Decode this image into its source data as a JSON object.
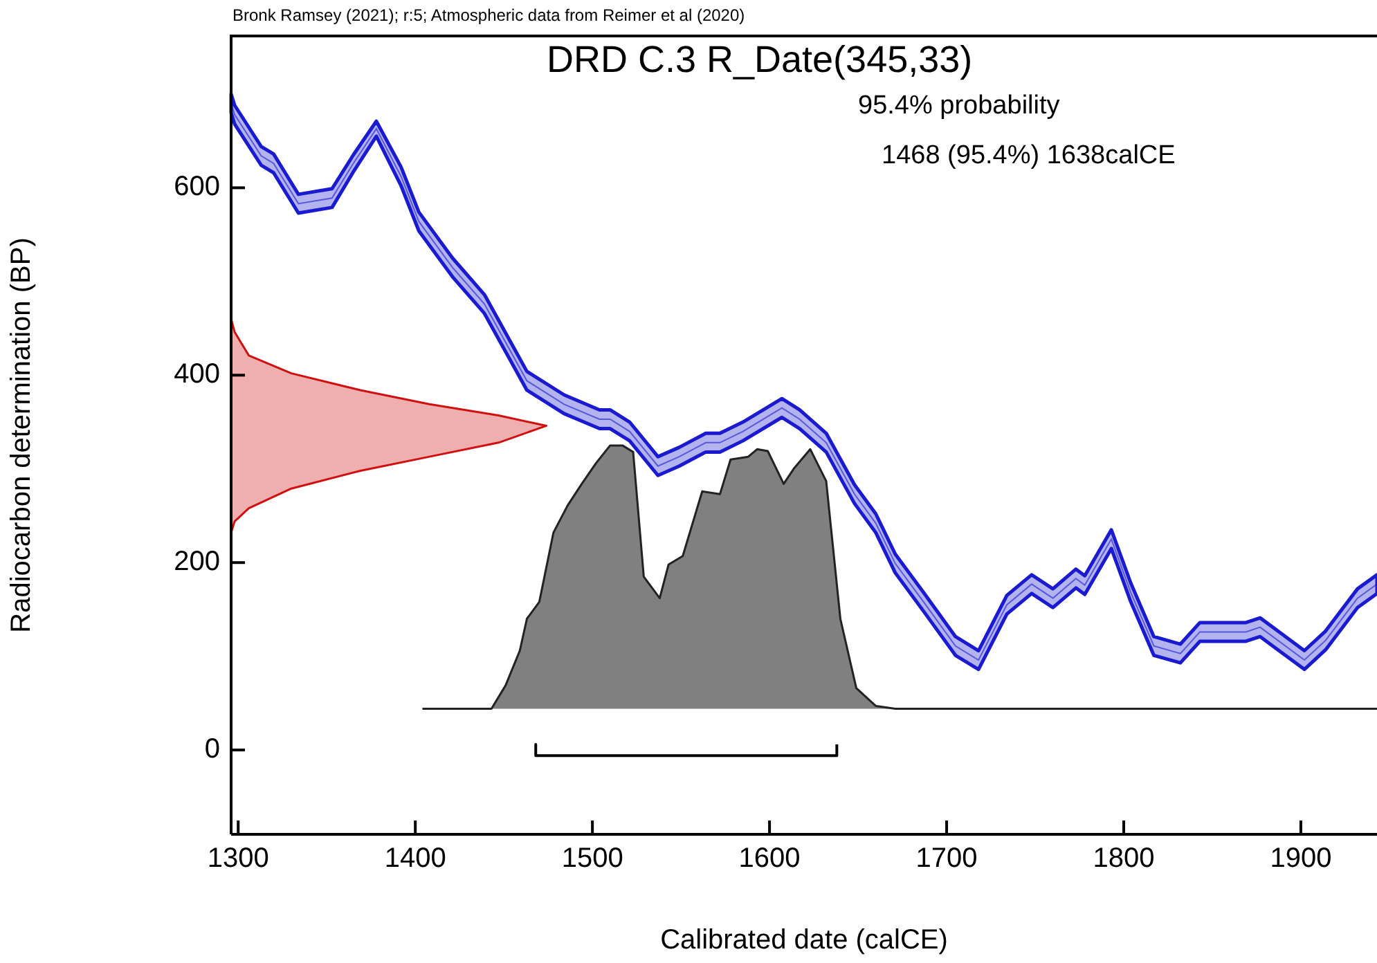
{
  "chart_data": {
    "type": "line",
    "title": "DRD C.3 R_Date(345,33)",
    "xlabel": "Calibrated date (calCE)",
    "ylabel": "Radiocarbon determination (BP)",
    "annotations": [
      "Bronk Ramsey (2021); r:5; Atmospheric data from Reimer et al (2020)",
      "95.4% probability",
      "1468 (95.4%) 1638calCE"
    ],
    "xlim": [
      1296,
      1943
    ],
    "ylim": [
      -90,
      762
    ],
    "xticks": [
      1300,
      1400,
      1500,
      1600,
      1700,
      1800,
      1900
    ],
    "yticks": [
      0,
      200,
      400,
      600
    ],
    "grid": false,
    "legend": false,
    "marker": "none",
    "series": [
      {
        "color": "#1a1ad0",
        "x": [
          1296,
          1298,
          1313,
          1320,
          1334,
          1353,
          1365,
          1378,
          1392,
          1402,
          1421,
          1439,
          1463,
          1484,
          1504,
          1510,
          1521,
          1537,
          1549,
          1564,
          1572,
          1585,
          1607,
          1617,
          1632,
          1648,
          1660,
          1671,
          1687,
          1705,
          1718,
          1734,
          1748,
          1760,
          1773,
          1778,
          1793,
          1804,
          1817,
          1832,
          1843,
          1869,
          1877,
          1887,
          1902,
          1914,
          1932,
          1943
        ],
        "values": [
          690,
          678,
          634,
          626,
          583,
          589,
          626,
          663,
          612,
          564,
          515,
          476,
          394,
          369,
          353,
          353,
          340,
          303,
          313,
          328,
          328,
          340,
          365,
          353,
          328,
          273,
          242,
          199,
          158,
          111,
          96,
          155,
          177,
          162,
          183,
          176,
          225,
          168,
          111,
          103,
          126,
          126,
          131,
          117,
          96,
          117,
          162,
          177
        ],
        "lower": [
          680,
          668,
          624,
          616,
          573,
          579,
          617,
          655,
          602,
          554,
          505,
          466,
          384,
          359,
          343,
          343,
          330,
          293,
          303,
          318,
          318,
          330,
          355,
          343,
          318,
          263,
          232,
          189,
          148,
          101,
          86,
          145,
          167,
          152,
          173,
          166,
          215,
          158,
          101,
          93,
          116,
          116,
          121,
          107,
          86,
          107,
          152,
          167
        ],
        "upper": [
          700,
          688,
          644,
          636,
          593,
          599,
          635,
          671,
          622,
          574,
          525,
          486,
          404,
          379,
          363,
          363,
          350,
          313,
          323,
          338,
          338,
          350,
          375,
          363,
          338,
          283,
          252,
          209,
          168,
          121,
          106,
          165,
          187,
          172,
          193,
          186,
          235,
          178,
          121,
          113,
          136,
          136,
          141,
          127,
          106,
          127,
          172,
          187
        ]
      },
      {
        "type": "area",
        "color": "#d01010",
        "x": [
          1296,
          1298,
          1306,
          1330,
          1369,
          1408,
          1447,
          1474,
          1447,
          1408,
          1369,
          1330,
          1306,
          1298,
          1296
        ],
        "values": [
          460,
          446,
          421,
          402,
          384,
          369,
          357,
          346,
          328,
          313,
          298,
          279,
          258,
          244,
          232
        ]
      },
      {
        "type": "area",
        "color": "#808080",
        "x": [
          1404,
          1443,
          1451,
          1459,
          1463,
          1470,
          1478,
          1486,
          1494,
          1502,
          1510,
          1517,
          1523,
          1529,
          1538,
          1543,
          1551,
          1562,
          1572,
          1578,
          1588,
          1593,
          1599,
          1608,
          1614,
          1623,
          1632,
          1640,
          1649,
          1660,
          1671,
          1943
        ],
        "values": [
          44,
          44,
          69,
          106,
          140,
          158,
          232,
          261,
          284,
          306,
          325,
          325,
          318,
          185,
          162,
          198,
          207,
          276,
          273,
          310,
          313,
          321,
          319,
          284,
          301,
          321,
          287,
          140,
          66,
          47,
          44,
          44
        ]
      },
      {
        "color": "#000000",
        "x": [
          1468,
          1468,
          1638,
          1638
        ],
        "values": [
          6,
          -6,
          -6,
          6
        ]
      }
    ]
  }
}
